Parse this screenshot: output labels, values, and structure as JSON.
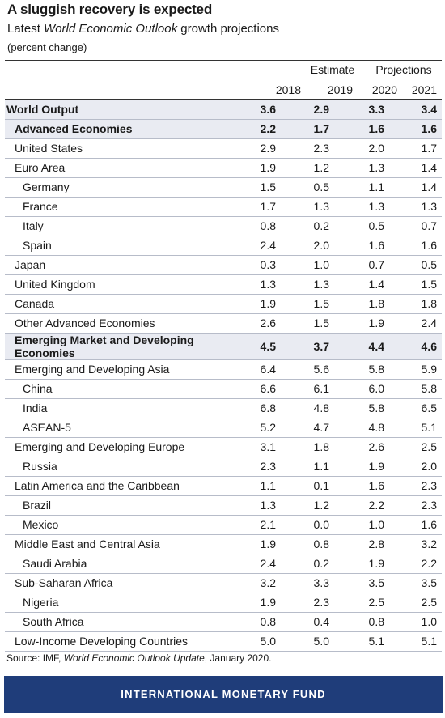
{
  "title": "A sluggish recovery is expected",
  "subtitle_pre": "Latest ",
  "subtitle_italic": "World Economic Outlook",
  "subtitle_post": " growth projections",
  "unit": "(percent change)",
  "header_groups": {
    "estimate": "Estimate",
    "projections": "Projections"
  },
  "source_pre": "Source: IMF, ",
  "source_italic": "World Economic Outlook Update",
  "source_post": ", January 2020.",
  "footer": "INTERNATIONAL MONETARY FUND",
  "colors": {
    "band": "#1f3d7a",
    "highlight_row": "#e9ebf2"
  },
  "chart_data": {
    "type": "table",
    "columns": [
      "2018",
      "2019",
      "2020",
      "2021"
    ],
    "rows": [
      {
        "label": "World Output",
        "values": [
          "3.6",
          "2.9",
          "3.3",
          "3.4"
        ],
        "bold": true,
        "level": 0
      },
      {
        "label": "Advanced Economies",
        "values": [
          "2.2",
          "1.7",
          "1.6",
          "1.6"
        ],
        "bold": true,
        "level": 1
      },
      {
        "label": "United States",
        "values": [
          "2.9",
          "2.3",
          "2.0",
          "1.7"
        ],
        "bold": false,
        "level": 1
      },
      {
        "label": "Euro Area",
        "values": [
          "1.9",
          "1.2",
          "1.3",
          "1.4"
        ],
        "bold": false,
        "level": 1
      },
      {
        "label": "Germany",
        "values": [
          "1.5",
          "0.5",
          "1.1",
          "1.4"
        ],
        "bold": false,
        "level": 2
      },
      {
        "label": "France",
        "values": [
          "1.7",
          "1.3",
          "1.3",
          "1.3"
        ],
        "bold": false,
        "level": 2
      },
      {
        "label": "Italy",
        "values": [
          "0.8",
          "0.2",
          "0.5",
          "0.7"
        ],
        "bold": false,
        "level": 2
      },
      {
        "label": "Spain",
        "values": [
          "2.4",
          "2.0",
          "1.6",
          "1.6"
        ],
        "bold": false,
        "level": 2
      },
      {
        "label": "Japan",
        "values": [
          "0.3",
          "1.0",
          "0.7",
          "0.5"
        ],
        "bold": false,
        "level": 1
      },
      {
        "label": "United Kingdom",
        "values": [
          "1.3",
          "1.3",
          "1.4",
          "1.5"
        ],
        "bold": false,
        "level": 1
      },
      {
        "label": "Canada",
        "values": [
          "1.9",
          "1.5",
          "1.8",
          "1.8"
        ],
        "bold": false,
        "level": 1
      },
      {
        "label": "Other Advanced Economies",
        "values": [
          "2.6",
          "1.5",
          "1.9",
          "2.4"
        ],
        "bold": false,
        "level": 1
      },
      {
        "label": "Emerging Market and Developing Economies",
        "values": [
          "4.5",
          "3.7",
          "4.4",
          "4.6"
        ],
        "bold": true,
        "level": 1
      },
      {
        "label": "Emerging and Developing Asia",
        "values": [
          "6.4",
          "5.6",
          "5.8",
          "5.9"
        ],
        "bold": false,
        "level": 1
      },
      {
        "label": "China",
        "values": [
          "6.6",
          "6.1",
          "6.0",
          "5.8"
        ],
        "bold": false,
        "level": 2
      },
      {
        "label": "India",
        "values": [
          "6.8",
          "4.8",
          "5.8",
          "6.5"
        ],
        "bold": false,
        "level": 2
      },
      {
        "label": "ASEAN-5",
        "values": [
          "5.2",
          "4.7",
          "4.8",
          "5.1"
        ],
        "bold": false,
        "level": 2
      },
      {
        "label": "Emerging and Developing Europe",
        "values": [
          "3.1",
          "1.8",
          "2.6",
          "2.5"
        ],
        "bold": false,
        "level": 1
      },
      {
        "label": "Russia",
        "values": [
          "2.3",
          "1.1",
          "1.9",
          "2.0"
        ],
        "bold": false,
        "level": 2
      },
      {
        "label": "Latin America and the Caribbean",
        "values": [
          "1.1",
          "0.1",
          "1.6",
          "2.3"
        ],
        "bold": false,
        "level": 1
      },
      {
        "label": "Brazil",
        "values": [
          "1.3",
          "1.2",
          "2.2",
          "2.3"
        ],
        "bold": false,
        "level": 2
      },
      {
        "label": "Mexico",
        "values": [
          "2.1",
          "0.0",
          "1.0",
          "1.6"
        ],
        "bold": false,
        "level": 2
      },
      {
        "label": "Middle East and Central Asia",
        "values": [
          "1.9",
          "0.8",
          "2.8",
          "3.2"
        ],
        "bold": false,
        "level": 1
      },
      {
        "label": "Saudi Arabia",
        "values": [
          "2.4",
          "0.2",
          "1.9",
          "2.2"
        ],
        "bold": false,
        "level": 2
      },
      {
        "label": "Sub-Saharan Africa",
        "values": [
          "3.2",
          "3.3",
          "3.5",
          "3.5"
        ],
        "bold": false,
        "level": 1
      },
      {
        "label": "Nigeria",
        "values": [
          "1.9",
          "2.3",
          "2.5",
          "2.5"
        ],
        "bold": false,
        "level": 2
      },
      {
        "label": "South Africa",
        "values": [
          "0.8",
          "0.4",
          "0.8",
          "1.0"
        ],
        "bold": false,
        "level": 2
      },
      {
        "label": "Low-Income Developing Countries",
        "values": [
          "5.0",
          "5.0",
          "5.1",
          "5.1"
        ],
        "bold": false,
        "level": 1
      }
    ]
  }
}
